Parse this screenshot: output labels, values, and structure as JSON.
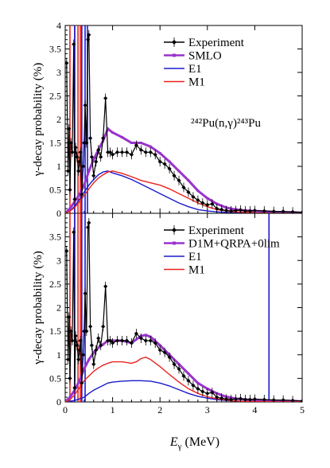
{
  "chart_data": [
    {
      "type": "line",
      "ylabel": "γ-decay probability (%)",
      "xlim": [
        0,
        5
      ],
      "ylim": [
        0,
        4
      ],
      "yticks": [
        "0",
        "0.5",
        "1",
        "1.5",
        "2",
        "2.5",
        "3",
        "3.5",
        "4"
      ],
      "annotation": "²⁴²Pu(n,γ)²⁴³Pu",
      "legend_position": "top-right",
      "series": [
        {
          "name": "Experiment",
          "color": "#000000",
          "marker": "diamond",
          "x": [
            0.03,
            0.06,
            0.08,
            0.1,
            0.12,
            0.15,
            0.18,
            0.2,
            0.22,
            0.25,
            0.28,
            0.3,
            0.32,
            0.35,
            0.38,
            0.4,
            0.42,
            0.45,
            0.48,
            0.5,
            0.53,
            0.56,
            0.6,
            0.65,
            0.7,
            0.75,
            0.8,
            0.85,
            0.9,
            0.95,
            1.0,
            1.1,
            1.2,
            1.3,
            1.4,
            1.5,
            1.6,
            1.7,
            1.8,
            1.9,
            2.0,
            2.1,
            2.2,
            2.3,
            2.4,
            2.5,
            2.6,
            2.7,
            2.8,
            2.9,
            3.0,
            3.1,
            3.2,
            3.3,
            3.4,
            3.5,
            3.6,
            3.7,
            3.8,
            3.9,
            4.0,
            4.2,
            4.4,
            4.6,
            4.8,
            5.0
          ],
          "y": [
            3.2,
            0.9,
            1.8,
            0.5,
            1.5,
            1.3,
            3.6,
            0.3,
            1.4,
            1.2,
            0.9,
            1.1,
            1.3,
            0.4,
            1.0,
            1.5,
            2.3,
            1.5,
            3.7,
            3.8,
            1.6,
            1.2,
            0.8,
            1.1,
            1.35,
            1.2,
            1.6,
            2.45,
            1.3,
            1.3,
            1.25,
            1.3,
            1.3,
            1.3,
            1.25,
            1.45,
            1.35,
            1.3,
            1.3,
            1.25,
            1.1,
            1.05,
            0.95,
            0.8,
            0.7,
            0.55,
            0.45,
            0.35,
            0.28,
            0.22,
            0.18,
            0.2,
            0.1,
            0.08,
            0.06,
            0.05,
            0.06,
            0.07,
            0.05,
            0.05,
            0.06,
            0.05,
            0.04,
            0.04,
            0.03,
            0.02
          ]
        },
        {
          "name": "SMLO",
          "color": "#9933cc",
          "x": [
            0.0,
            0.1,
            0.2,
            0.3,
            0.4,
            0.5,
            0.6,
            0.7,
            0.8,
            0.9,
            1.0,
            1.2,
            1.4,
            1.6,
            1.8,
            2.0,
            2.2,
            2.4,
            2.6,
            2.8,
            3.0,
            3.2,
            3.4,
            3.6,
            3.8,
            4.0,
            4.2,
            4.4,
            4.6,
            4.8,
            5.0
          ],
          "y": [
            0.0,
            0.1,
            0.25,
            0.4,
            0.6,
            0.9,
            1.15,
            1.35,
            1.55,
            1.8,
            1.72,
            1.62,
            1.5,
            1.5,
            1.42,
            1.28,
            1.1,
            0.9,
            0.7,
            0.48,
            0.32,
            0.2,
            0.12,
            0.08,
            0.06,
            0.05,
            0.04,
            0.03,
            0.02,
            0.02,
            0.01
          ]
        },
        {
          "name": "E1",
          "color": "#1a1acc",
          "x": [
            0.0,
            0.1,
            0.2,
            0.3,
            0.4,
            0.5,
            0.6,
            0.7,
            0.8,
            0.9,
            1.0,
            1.2,
            1.4,
            1.6,
            1.8,
            2.0,
            2.2,
            2.4,
            2.6,
            2.8,
            3.0,
            3.2,
            3.4,
            3.6,
            3.8,
            4.0,
            4.5,
            5.0
          ],
          "y": [
            0.0,
            0.05,
            0.15,
            0.3,
            0.45,
            0.6,
            0.72,
            0.82,
            0.88,
            0.9,
            0.86,
            0.8,
            0.72,
            0.62,
            0.52,
            0.42,
            0.32,
            0.22,
            0.14,
            0.08,
            0.05,
            0.03,
            0.02,
            0.01,
            0.01,
            0.0,
            0.0,
            0.0
          ]
        },
        {
          "name": "M1",
          "color": "#e8231e",
          "x": [
            0.0,
            0.1,
            0.2,
            0.3,
            0.4,
            0.5,
            0.6,
            0.7,
            0.8,
            0.9,
            1.0,
            1.2,
            1.4,
            1.6,
            1.8,
            2.0,
            2.2,
            2.4,
            2.6,
            2.8,
            3.0,
            3.2,
            3.4,
            3.6,
            3.8,
            4.0,
            4.5,
            5.0
          ],
          "y": [
            0.0,
            0.05,
            0.12,
            0.25,
            0.38,
            0.52,
            0.65,
            0.75,
            0.82,
            0.88,
            0.9,
            0.85,
            0.78,
            0.7,
            0.65,
            0.6,
            0.52,
            0.42,
            0.32,
            0.22,
            0.14,
            0.08,
            0.05,
            0.03,
            0.02,
            0.01,
            0.0,
            0.0
          ]
        }
      ],
      "spikes": [
        {
          "x": 0.1,
          "color": "#e8231e"
        },
        {
          "x": 0.2,
          "color": "#e8231e"
        },
        {
          "x": 0.27,
          "color": "#e8231e"
        },
        {
          "x": 0.32,
          "color": "#e8231e"
        },
        {
          "x": 0.2,
          "color": "#1a1acc"
        },
        {
          "x": 0.35,
          "color": "#1a1acc"
        },
        {
          "x": 0.42,
          "color": "#1a1acc"
        },
        {
          "x": 0.47,
          "color": "#1a1acc"
        }
      ]
    },
    {
      "type": "line",
      "ylabel": "γ-decay probability (%)",
      "xlabel": "E_γ (MeV)",
      "xlim": [
        0,
        5
      ],
      "ylim": [
        0,
        4
      ],
      "xticks": [
        "0",
        "1",
        "2",
        "3",
        "4",
        "5"
      ],
      "yticks": [
        "0",
        "0.5",
        "1",
        "1.5",
        "2",
        "2.5",
        "3",
        "3.5"
      ],
      "legend_position": "top-right",
      "series": [
        {
          "name": "Experiment",
          "color": "#000000",
          "marker": "diamond",
          "x": [
            0.03,
            0.06,
            0.08,
            0.1,
            0.12,
            0.15,
            0.18,
            0.2,
            0.22,
            0.25,
            0.28,
            0.3,
            0.32,
            0.35,
            0.38,
            0.4,
            0.42,
            0.45,
            0.48,
            0.5,
            0.53,
            0.56,
            0.6,
            0.65,
            0.7,
            0.75,
            0.8,
            0.85,
            0.9,
            0.95,
            1.0,
            1.1,
            1.2,
            1.3,
            1.4,
            1.5,
            1.6,
            1.7,
            1.8,
            1.9,
            2.0,
            2.1,
            2.2,
            2.3,
            2.4,
            2.5,
            2.6,
            2.7,
            2.8,
            2.9,
            3.0,
            3.1,
            3.2,
            3.3,
            3.4,
            3.5,
            3.6,
            3.7,
            3.8,
            3.9,
            4.0,
            4.2,
            4.4,
            4.6,
            4.8,
            5.0
          ],
          "y": [
            3.2,
            0.9,
            1.8,
            0.5,
            1.5,
            1.3,
            3.6,
            0.3,
            1.4,
            1.2,
            0.9,
            1.1,
            1.3,
            0.4,
            1.0,
            1.5,
            2.3,
            1.5,
            3.7,
            3.8,
            1.6,
            1.2,
            0.8,
            1.1,
            1.35,
            1.2,
            1.6,
            2.45,
            1.3,
            1.3,
            1.25,
            1.3,
            1.3,
            1.3,
            1.25,
            1.45,
            1.35,
            1.3,
            1.3,
            1.25,
            1.1,
            1.05,
            0.95,
            0.8,
            0.7,
            0.55,
            0.45,
            0.35,
            0.28,
            0.22,
            0.18,
            0.2,
            0.1,
            0.08,
            0.06,
            0.05,
            0.06,
            0.07,
            0.05,
            0.05,
            0.06,
            0.05,
            0.04,
            0.04,
            0.03,
            0.02
          ]
        },
        {
          "name": "D1M+QRPA+0lim",
          "color": "#9933cc",
          "x": [
            0.0,
            0.1,
            0.2,
            0.3,
            0.4,
            0.5,
            0.6,
            0.7,
            0.8,
            0.9,
            1.0,
            1.2,
            1.4,
            1.6,
            1.7,
            1.8,
            2.0,
            2.2,
            2.4,
            2.6,
            2.8,
            3.0,
            3.2,
            3.4,
            3.6,
            3.8,
            4.0,
            4.2,
            4.4,
            4.6,
            4.8,
            5.0
          ],
          "y": [
            0.0,
            0.1,
            0.25,
            0.45,
            0.7,
            0.9,
            1.05,
            1.15,
            1.22,
            1.3,
            1.3,
            1.3,
            1.25,
            1.4,
            1.42,
            1.38,
            1.2,
            1.0,
            0.8,
            0.6,
            0.4,
            0.28,
            0.18,
            0.11,
            0.07,
            0.05,
            0.04,
            0.03,
            0.03,
            0.02,
            0.02,
            0.01
          ]
        },
        {
          "name": "E1",
          "color": "#1a1acc",
          "x": [
            0.0,
            0.2,
            0.4,
            0.5,
            0.6,
            0.7,
            0.8,
            0.9,
            1.0,
            1.2,
            1.4,
            1.6,
            1.8,
            2.0,
            2.2,
            2.4,
            2.6,
            2.8,
            3.0,
            3.2,
            3.4,
            3.6,
            3.8,
            4.0,
            4.5,
            5.0
          ],
          "y": [
            0.0,
            0.03,
            0.1,
            0.18,
            0.25,
            0.3,
            0.35,
            0.4,
            0.42,
            0.44,
            0.45,
            0.45,
            0.44,
            0.4,
            0.34,
            0.26,
            0.18,
            0.12,
            0.08,
            0.05,
            0.03,
            0.02,
            0.01,
            0.01,
            0.0,
            0.0
          ]
        },
        {
          "name": "M1",
          "color": "#e8231e",
          "x": [
            0.0,
            0.1,
            0.2,
            0.3,
            0.4,
            0.5,
            0.6,
            0.7,
            0.8,
            0.9,
            1.0,
            1.2,
            1.4,
            1.5,
            1.6,
            1.7,
            1.8,
            2.0,
            2.2,
            2.4,
            2.6,
            2.8,
            3.0,
            3.2,
            3.4,
            3.6,
            3.8,
            4.0,
            4.5,
            5.0
          ],
          "y": [
            0.0,
            0.05,
            0.15,
            0.3,
            0.45,
            0.55,
            0.65,
            0.72,
            0.78,
            0.82,
            0.85,
            0.85,
            0.82,
            0.85,
            0.92,
            0.95,
            0.9,
            0.75,
            0.58,
            0.42,
            0.28,
            0.18,
            0.11,
            0.07,
            0.04,
            0.02,
            0.01,
            0.01,
            0.0,
            0.0
          ]
        }
      ],
      "spikes": [
        {
          "x": 0.1,
          "color": "#e8231e"
        },
        {
          "x": 0.2,
          "color": "#e8231e"
        },
        {
          "x": 0.27,
          "color": "#e8231e"
        },
        {
          "x": 0.32,
          "color": "#e8231e"
        },
        {
          "x": 0.2,
          "color": "#1a1acc"
        },
        {
          "x": 0.35,
          "color": "#1a1acc"
        },
        {
          "x": 0.42,
          "color": "#1a1acc"
        },
        {
          "x": 4.3,
          "color": "#1a1acc"
        }
      ]
    }
  ]
}
